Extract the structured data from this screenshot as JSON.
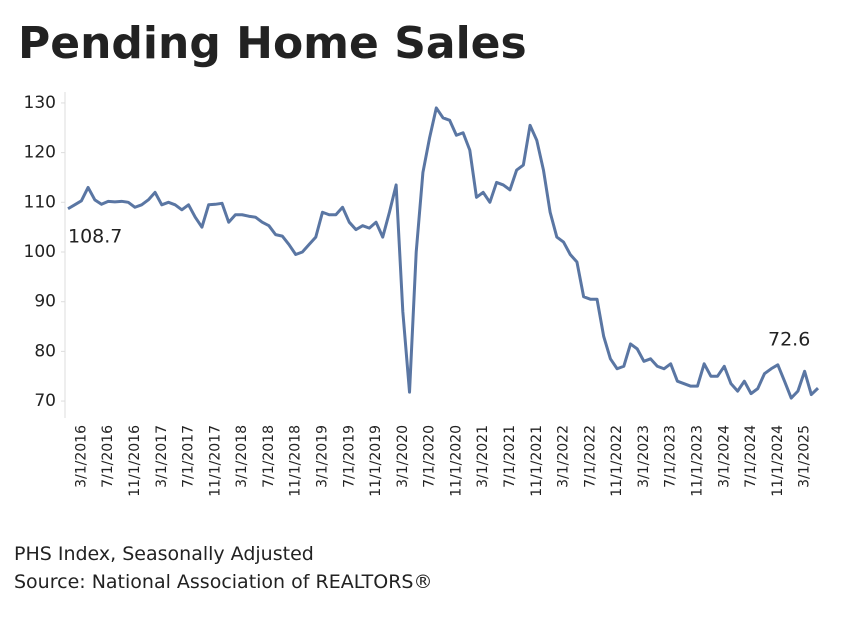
{
  "chart_data": {
    "type": "line",
    "title": "Pending Home Sales",
    "notes": [
      "PHS Index, Seasonally Adjusted",
      "Source: National Association of REALTORS®"
    ],
    "categories": [
      null,
      null,
      "3/1/2016",
      null,
      null,
      null,
      "7/1/2016",
      null,
      null,
      null,
      "11/1/2016",
      null,
      null,
      null,
      "3/1/2017",
      null,
      null,
      null,
      "7/1/2017",
      null,
      null,
      null,
      "11/1/2017",
      null,
      null,
      null,
      "3/1/2018",
      null,
      null,
      null,
      "7/1/2018",
      null,
      null,
      null,
      "11/1/2018",
      null,
      null,
      null,
      "3/1/2019",
      null,
      null,
      null,
      "7/1/2019",
      null,
      null,
      null,
      "11/1/2019",
      null,
      null,
      null,
      "3/1/2020",
      null,
      null,
      null,
      "7/1/2020",
      null,
      null,
      null,
      "11/1/2020",
      null,
      null,
      null,
      "3/1/2021",
      null,
      null,
      null,
      "7/1/2021",
      null,
      null,
      null,
      "11/1/2021",
      null,
      null,
      null,
      "3/1/2022",
      null,
      null,
      null,
      "7/1/2022",
      null,
      null,
      null,
      "11/1/2022",
      null,
      null,
      null,
      "3/1/2023",
      null,
      null,
      null,
      "7/1/2023",
      null,
      null,
      null,
      "11/1/2023",
      null,
      null,
      null,
      "3/1/2024",
      null,
      null,
      null,
      "7/1/2024",
      null,
      null,
      null,
      "11/1/2024",
      null,
      null,
      null,
      "3/1/2025",
      null,
      null
    ],
    "series": [
      {
        "name": "PHS Index",
        "color": "#5a76a3",
        "values": [
          108.7,
          109.5,
          110.3,
          113.0,
          110.5,
          109.6,
          110.2,
          110.1,
          110.2,
          110.0,
          109.0,
          109.5,
          110.5,
          112.0,
          109.5,
          110.0,
          109.5,
          108.5,
          109.5,
          107.0,
          105.0,
          109.5,
          109.6,
          109.8,
          106.0,
          107.5,
          107.5,
          107.2,
          107.0,
          106.0,
          105.3,
          103.5,
          103.2,
          101.5,
          99.5,
          100.0,
          101.5,
          103.0,
          108.0,
          107.5,
          107.5,
          109.0,
          106.0,
          104.5,
          105.3,
          104.8,
          106.0,
          103.0,
          108.0,
          113.5,
          88.0,
          71.8,
          100.0,
          116.0,
          123.0,
          129.0,
          127.0,
          126.5,
          123.5,
          124.0,
          120.5,
          111.0,
          112.0,
          110.0,
          114.0,
          113.5,
          112.5,
          116.5,
          117.5,
          125.5,
          122.5,
          116.5,
          108.0,
          103.0,
          102.0,
          99.5,
          98.0,
          91.0,
          90.5,
          90.5,
          83.0,
          78.5,
          76.5,
          77.0,
          81.5,
          80.5,
          78.0,
          78.5,
          77.0,
          76.5,
          77.5,
          74.0,
          73.5,
          73.0,
          73.0,
          77.5,
          75.0,
          75.0,
          77.0,
          73.5,
          72.0,
          74.0,
          71.5,
          72.5,
          75.5,
          76.5,
          77.3,
          74.0,
          70.6,
          72.0,
          76.0,
          71.3,
          72.6
        ]
      }
    ],
    "ylim": [
      68,
      132
    ],
    "yticks": [
      70,
      80,
      90,
      100,
      110,
      120,
      130
    ]
  }
}
